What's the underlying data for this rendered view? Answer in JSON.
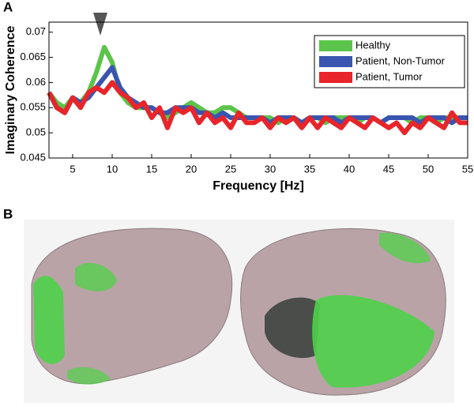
{
  "panel_labels": [
    "A",
    "B"
  ],
  "chart_data": {
    "type": "line",
    "xlabel": "Frequency [Hz]",
    "ylabel": "Imaginary Coherence",
    "x": [
      2,
      3,
      4,
      5,
      6,
      7,
      8,
      9,
      10,
      11,
      12,
      13,
      14,
      15,
      16,
      17,
      18,
      19,
      20,
      21,
      22,
      23,
      24,
      25,
      26,
      27,
      28,
      29,
      30,
      31,
      32,
      33,
      34,
      35,
      36,
      37,
      38,
      39,
      40,
      41,
      42,
      43,
      44,
      45,
      46,
      47,
      48,
      49,
      50,
      51,
      52,
      53,
      54,
      55
    ],
    "xlim": [
      2,
      55
    ],
    "ylim": [
      0.045,
      0.072
    ],
    "xticks": [
      5,
      10,
      15,
      20,
      25,
      30,
      35,
      40,
      45,
      50,
      55
    ],
    "yticks": [
      0.045,
      0.05,
      0.055,
      0.06,
      0.065,
      0.07
    ],
    "legend_position": "upper right",
    "series": [
      {
        "name": "Healthy",
        "color": "#5cc44a",
        "values": [
          0.058,
          0.056,
          0.055,
          0.057,
          0.056,
          0.058,
          0.062,
          0.067,
          0.064,
          0.058,
          0.056,
          0.055,
          0.055,
          0.055,
          0.054,
          0.053,
          0.054,
          0.055,
          0.056,
          0.055,
          0.054,
          0.054,
          0.055,
          0.055,
          0.054,
          0.053,
          0.053,
          0.053,
          0.053,
          0.052,
          0.053,
          0.053,
          0.052,
          0.053,
          0.053,
          0.052,
          0.053,
          0.053,
          0.053,
          0.052,
          0.053,
          0.053,
          0.052,
          0.053,
          0.053,
          0.053,
          0.052,
          0.053,
          0.053,
          0.052,
          0.053,
          0.053,
          0.053,
          0.053
        ]
      },
      {
        "name": "Patient, Non-Tumor",
        "color": "#3a55b0",
        "values": [
          0.058,
          0.055,
          0.054,
          0.057,
          0.056,
          0.057,
          0.059,
          0.061,
          0.063,
          0.059,
          0.057,
          0.056,
          0.055,
          0.055,
          0.054,
          0.054,
          0.055,
          0.055,
          0.055,
          0.054,
          0.054,
          0.053,
          0.054,
          0.053,
          0.053,
          0.053,
          0.053,
          0.053,
          0.052,
          0.053,
          0.053,
          0.053,
          0.052,
          0.053,
          0.053,
          0.053,
          0.053,
          0.052,
          0.053,
          0.053,
          0.053,
          0.053,
          0.052,
          0.053,
          0.053,
          0.053,
          0.053,
          0.052,
          0.053,
          0.053,
          0.053,
          0.052,
          0.053,
          0.053
        ]
      },
      {
        "name": "Patient, Tumor",
        "color": "#e8252a",
        "values": [
          0.058,
          0.055,
          0.054,
          0.057,
          0.055,
          0.058,
          0.059,
          0.058,
          0.06,
          0.058,
          0.057,
          0.055,
          0.056,
          0.053,
          0.055,
          0.051,
          0.055,
          0.054,
          0.055,
          0.052,
          0.054,
          0.052,
          0.053,
          0.051,
          0.054,
          0.052,
          0.052,
          0.053,
          0.051,
          0.053,
          0.052,
          0.053,
          0.051,
          0.053,
          0.051,
          0.053,
          0.052,
          0.051,
          0.053,
          0.052,
          0.051,
          0.053,
          0.052,
          0.051,
          0.052,
          0.05,
          0.052,
          0.051,
          0.053,
          0.052,
          0.051,
          0.054,
          0.052,
          0.052
        ]
      }
    ]
  }
}
